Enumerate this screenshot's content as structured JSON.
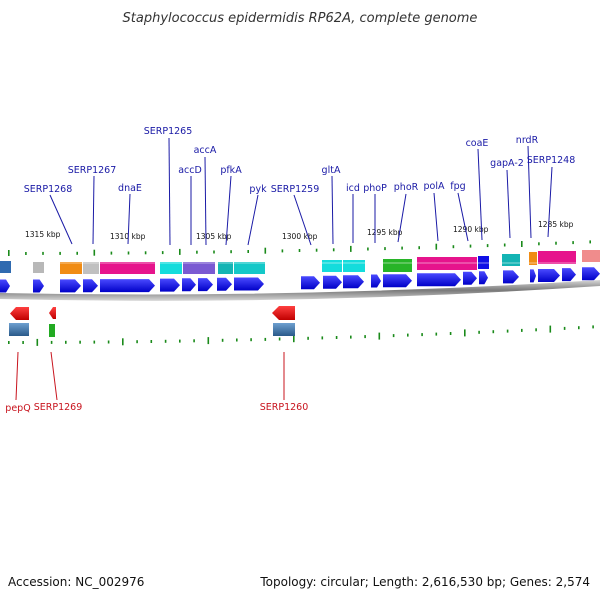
{
  "title": "Staphylococcus epidermidis RP62A, complete genome",
  "footer": {
    "accession": "Accession: NC_002976",
    "summary": "Topology: circular; Length: 2,616,530 bp; Genes: 2,574"
  },
  "scale_labels": [
    "1315 kbp",
    "1310 kbp",
    "1305 kbp",
    "1300 kbp",
    "1295 kbp",
    "1290 kbp",
    "1285 kbp"
  ],
  "top_labels": [
    "SERP1268",
    "SERP1267",
    "dnaE",
    "SERP1265",
    "accD",
    "accA",
    "pfkA",
    "pyk",
    "SERP1259",
    "gltA",
    "icd",
    "phoP",
    "phoR",
    "polA",
    "fpg",
    "coaE",
    "gapA-2",
    "nrdR",
    "SERP1248"
  ],
  "bottom_labels": [
    "pepQ",
    "SERP1269",
    "SERP1260"
  ],
  "colors": {
    "label_top": "#1a1aa6",
    "label_bottom": "#c8141e",
    "gene_forward": "#1010e6",
    "gene_reverse": "#e01414",
    "tick": "#1a8a1a",
    "backbone": "#777777"
  }
}
